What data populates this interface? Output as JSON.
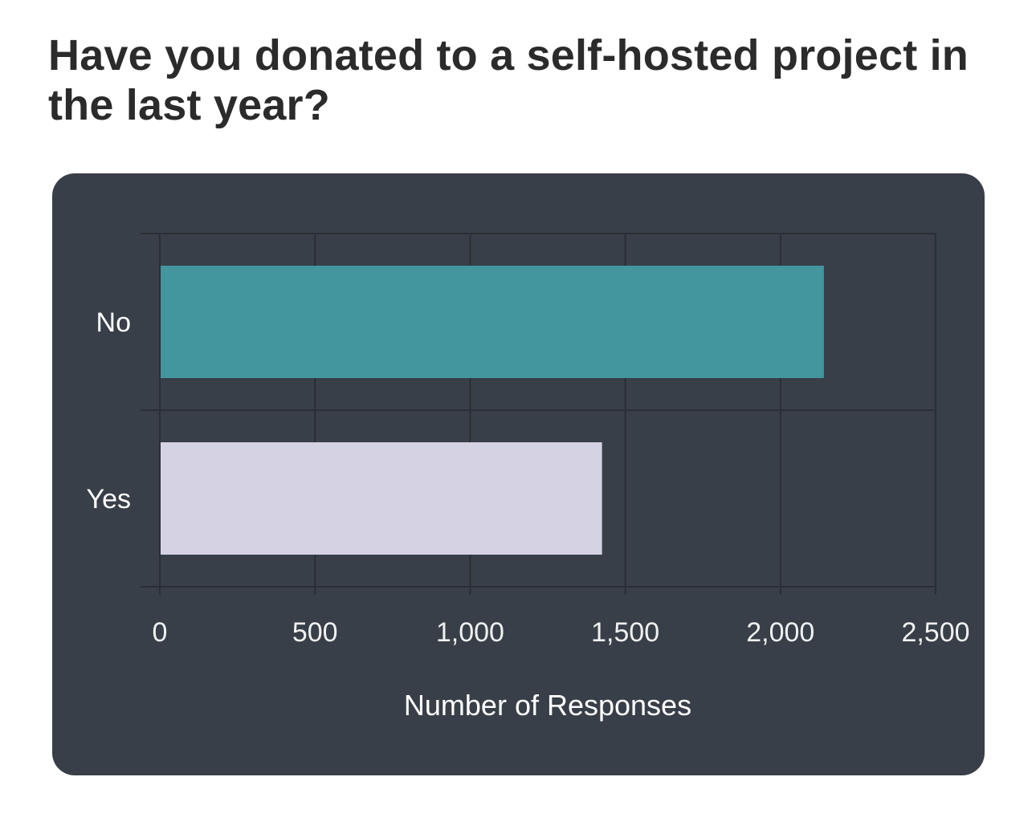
{
  "page": {
    "title": "Have you donated to a self-hosted project in the last year?"
  },
  "colors": {
    "card_background": "#383f48",
    "grid": "#2a2f35",
    "text": "#ffffff"
  },
  "chart_data": {
    "type": "bar",
    "orientation": "horizontal",
    "categories": [
      "No",
      "Yes"
    ],
    "values": [
      2140,
      1425
    ],
    "bar_colors": [
      "#43959e",
      "#d5d2e3"
    ],
    "title": "Have you donated to a self-hosted project in the last year?",
    "xlabel": "Number of Responses",
    "ylabel": "",
    "xlim": [
      0,
      2500
    ],
    "x_ticks": [
      0,
      500,
      1000,
      1500,
      2000,
      2500
    ],
    "x_tick_labels": [
      "0",
      "500",
      "1,000",
      "1,500",
      "2,000",
      "2,500"
    ],
    "grid": true,
    "legend": "none"
  }
}
